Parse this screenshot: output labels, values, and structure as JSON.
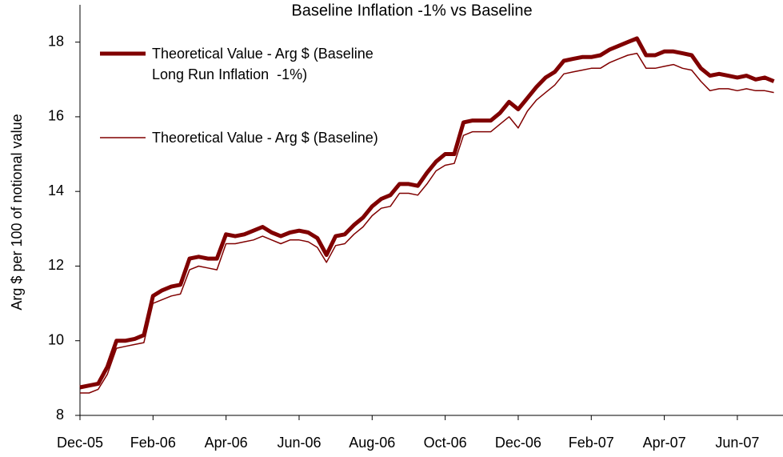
{
  "chart_data": {
    "type": "line",
    "title": "Baseline Inflation  -1% vs Baseline",
    "y_label": "Arg $ per 100 of notional value",
    "x": [
      0,
      0.25,
      0.5,
      0.75,
      1,
      1.25,
      1.5,
      1.75,
      2,
      2.25,
      2.5,
      2.75,
      3,
      3.25,
      3.5,
      3.75,
      4,
      4.25,
      4.5,
      4.75,
      5,
      5.25,
      5.5,
      5.75,
      6,
      6.25,
      6.5,
      6.75,
      7,
      7.25,
      7.5,
      7.75,
      8,
      8.25,
      8.5,
      8.75,
      9,
      9.25,
      9.5,
      9.75,
      10,
      10.25,
      10.5,
      10.75,
      11,
      11.25,
      11.5,
      11.75,
      12,
      12.25,
      12.5,
      12.75,
      13,
      13.25,
      13.5,
      13.75,
      14,
      14.25,
      14.5,
      14.75,
      15,
      15.25,
      15.5,
      15.75,
      16,
      16.25,
      16.5,
      16.75,
      17,
      17.25,
      17.5,
      17.75,
      18,
      18.25,
      18.5,
      18.75,
      19
    ],
    "series": [
      {
        "name": "Theoretical Value - Arg $ (Baseline\nLong Run Inflation  -1%)",
        "color": "#800000",
        "width": 5,
        "values": [
          8.75,
          8.8,
          8.85,
          9.3,
          10.0,
          10.0,
          10.05,
          10.15,
          11.2,
          11.35,
          11.45,
          11.5,
          12.2,
          12.25,
          12.2,
          12.2,
          12.85,
          12.8,
          12.85,
          12.95,
          13.05,
          12.9,
          12.8,
          12.9,
          12.95,
          12.9,
          12.75,
          12.3,
          12.8,
          12.85,
          13.1,
          13.3,
          13.6,
          13.8,
          13.9,
          14.2,
          14.2,
          14.15,
          14.5,
          14.8,
          15.0,
          15.0,
          15.85,
          15.9,
          15.9,
          15.9,
          16.1,
          16.4,
          16.2,
          16.5,
          16.8,
          17.05,
          17.2,
          17.5,
          17.55,
          17.6,
          17.6,
          17.65,
          17.8,
          17.9,
          18.0,
          18.1,
          17.65,
          17.65,
          17.75,
          17.75,
          17.7,
          17.65,
          17.3,
          17.1,
          17.15,
          17.1,
          17.05,
          17.1,
          17.0,
          17.05,
          16.95
        ]
      },
      {
        "name": "Theoretical Value - Arg $ (Baseline)",
        "color": "#800000",
        "width": 1.5,
        "values": [
          8.6,
          8.6,
          8.7,
          9.1,
          9.8,
          9.85,
          9.9,
          9.95,
          11.0,
          11.1,
          11.2,
          11.25,
          11.9,
          12.0,
          11.95,
          11.9,
          12.6,
          12.6,
          12.65,
          12.7,
          12.8,
          12.7,
          12.6,
          12.7,
          12.7,
          12.65,
          12.5,
          12.1,
          12.55,
          12.6,
          12.85,
          13.05,
          13.35,
          13.55,
          13.6,
          13.95,
          13.95,
          13.9,
          14.2,
          14.55,
          14.7,
          14.75,
          15.5,
          15.6,
          15.6,
          15.6,
          15.8,
          16.0,
          15.7,
          16.15,
          16.45,
          16.65,
          16.85,
          17.15,
          17.2,
          17.25,
          17.3,
          17.3,
          17.45,
          17.55,
          17.65,
          17.7,
          17.3,
          17.3,
          17.35,
          17.4,
          17.3,
          17.25,
          16.95,
          16.7,
          16.75,
          16.75,
          16.7,
          16.75,
          16.7,
          16.7,
          16.65
        ]
      }
    ],
    "xlim": [
      0,
      19.25
    ],
    "xticks": [
      {
        "value": 0,
        "label": "Dec-05"
      },
      {
        "value": 2,
        "label": "Feb-06"
      },
      {
        "value": 4,
        "label": "Apr-06"
      },
      {
        "value": 6,
        "label": "Jun-06"
      },
      {
        "value": 8,
        "label": "Aug-06"
      },
      {
        "value": 10,
        "label": "Oct-06"
      },
      {
        "value": 12,
        "label": "Dec-06"
      },
      {
        "value": 14,
        "label": "Feb-07"
      },
      {
        "value": 16,
        "label": "Apr-07"
      },
      {
        "value": 18,
        "label": "Jun-07"
      }
    ],
    "ylim": [
      8,
      19
    ],
    "yticks": [
      8,
      10,
      12,
      14,
      16,
      18
    ]
  }
}
